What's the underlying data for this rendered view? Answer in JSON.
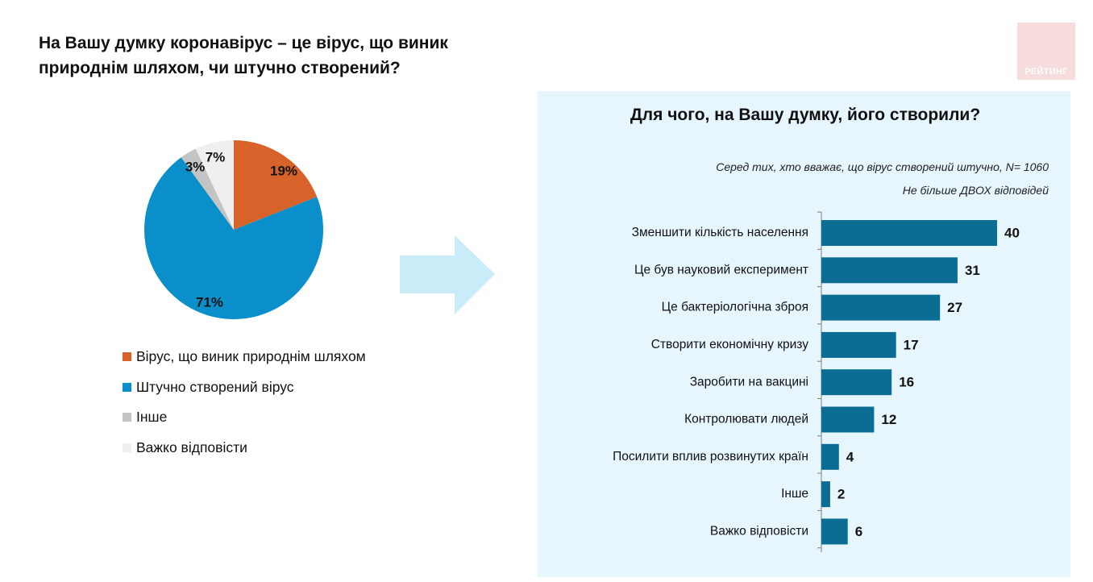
{
  "page": {
    "title": "На Вашу думку коронавірус – це вірус, що виник природнім шляхом, чи штучно створений?",
    "logo_text": "РЕЙТИНГ"
  },
  "legend": [
    {
      "label": "Вірус, що виник природнім шляхом",
      "color": "#d8632a"
    },
    {
      "label": "Штучно створений вірус",
      "color": "#0a8fca"
    },
    {
      "label": "Інше",
      "color": "#c4c4c4"
    },
    {
      "label": "Важко відповісти",
      "color": "#efefef"
    }
  ],
  "panel": {
    "title": "Для чого, на Вашу думку, його створили?",
    "subtitle_1": "Серед тих, хто вважає, що вірус створений штучно, N= 1060",
    "subtitle_2": "Не більше ДВОХ відповідей"
  },
  "colors": {
    "bar": "#0c6d94",
    "panel_bg": "#e6f6fc",
    "arrow": "#c9ecf9"
  },
  "chart_data": [
    {
      "type": "pie",
      "title": "На Вашу думку коронавірус – це вірус, що виник природнім шляхом, чи штучно створений?",
      "slices": [
        {
          "label": "Вірус, що виник природнім шляхом",
          "value": 19,
          "value_label": "19%",
          "color": "#d8632a"
        },
        {
          "label": "Штучно створений вірус",
          "value": 71,
          "value_label": "71%",
          "color": "#0a8fca"
        },
        {
          "label": "Інше",
          "value": 3,
          "value_label": "3%",
          "color": "#c4c4c4"
        },
        {
          "label": "Важко відповісти",
          "value": 7,
          "value_label": "7%",
          "color": "#efefef"
        }
      ],
      "start_angle": "12 o'clock",
      "direction": "clockwise",
      "legend_placement": "bottom"
    },
    {
      "type": "bar",
      "orientation": "horizontal",
      "title": "Для чого, на Вашу думку, його створили?",
      "categories": [
        "Зменшити кількість населення",
        "Це був науковий експеримент",
        "Це бактеріологічна зброя",
        "Створити економічну кризу",
        "Заробити на вакцині",
        "Контролювати людей",
        "Посилити вплив розвинутих країн",
        "Інше",
        "Важко відповісти"
      ],
      "values": [
        40,
        31,
        27,
        17,
        16,
        12,
        4,
        2,
        6
      ],
      "xlim": [
        0,
        40
      ],
      "grid": false,
      "data_labels": true
    }
  ]
}
